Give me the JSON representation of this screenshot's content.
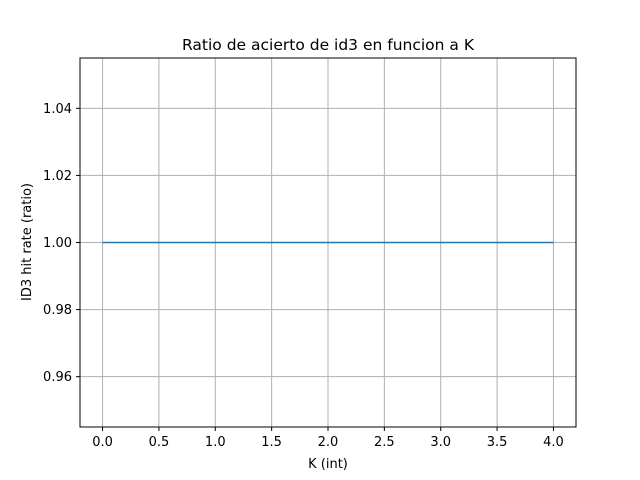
{
  "chart_data": {
    "type": "line",
    "title": "Ratio de acierto de id3 en funcion a K",
    "xlabel": "K (int)",
    "ylabel": "ID3 hit rate (ratio)",
    "x": [
      0,
      1,
      2,
      3,
      4
    ],
    "series": [
      {
        "values": [
          1.0,
          1.0,
          1.0,
          1.0,
          1.0
        ],
        "color": "#1f77b4"
      }
    ],
    "xlim": [
      -0.2,
      4.2
    ],
    "ylim": [
      0.945,
      1.055
    ],
    "xticks": [
      0.0,
      0.5,
      1.0,
      1.5,
      2.0,
      2.5,
      3.0,
      3.5,
      4.0
    ],
    "xtick_labels": [
      "0.0",
      "0.5",
      "1.0",
      "1.5",
      "2.0",
      "2.5",
      "3.0",
      "3.5",
      "4.0"
    ],
    "yticks": [
      0.96,
      0.98,
      1.0,
      1.02,
      1.04
    ],
    "ytick_labels": [
      "0.96",
      "0.98",
      "1.00",
      "1.02",
      "1.04"
    ],
    "grid": true,
    "grid_color": "#b0b0b0"
  }
}
